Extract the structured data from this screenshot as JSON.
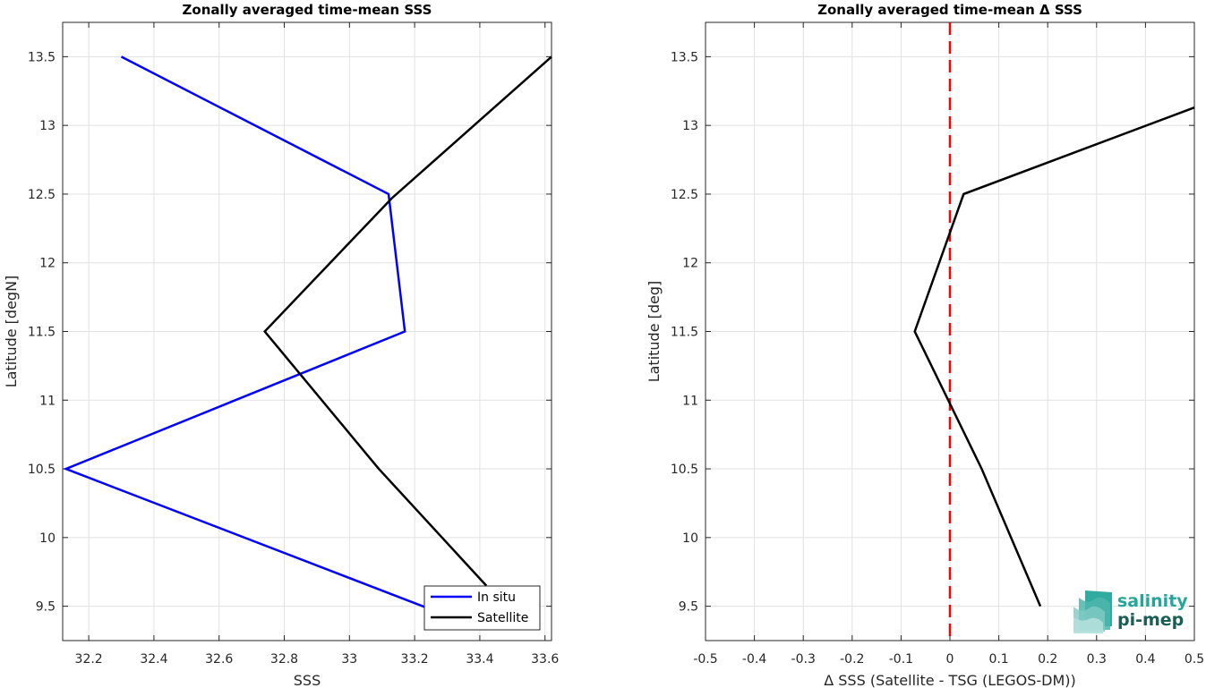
{
  "chart_data": [
    {
      "type": "line",
      "title": "Zonally averaged time-mean SSS",
      "xlabel": "SSS",
      "ylabel": "Latitude [degN]",
      "xlim": [
        32.12,
        33.62
      ],
      "ylim": [
        9.25,
        13.75
      ],
      "xticks": [
        32.2,
        32.4,
        32.6,
        32.8,
        33,
        33.2,
        33.4,
        33.6
      ],
      "yticks": [
        9.5,
        10,
        10.5,
        11,
        11.5,
        12,
        12.5,
        13,
        13.5
      ],
      "grid": true,
      "legend_position": "bottom-right",
      "series": [
        {
          "name": "In situ",
          "color": "#0000ff",
          "points": [
            [
              33.28,
              9.45
            ],
            [
              32.13,
              10.5
            ],
            [
              33.17,
              11.5
            ],
            [
              33.12,
              12.5
            ],
            [
              32.3,
              13.5
            ]
          ]
        },
        {
          "name": "Satellite",
          "color": "#000000",
          "points": [
            [
              33.42,
              9.65
            ],
            [
              33.09,
              10.5
            ],
            [
              32.74,
              11.5
            ],
            [
              33.13,
              12.47
            ],
            [
              33.62,
              13.5
            ]
          ]
        }
      ]
    },
    {
      "type": "line",
      "title": "Zonally averaged time-mean Δ SSS",
      "xlabel": "Δ SSS (Satellite - TSG (LEGOS-DM))",
      "ylabel": "Latitude [deg]",
      "xlim": [
        -0.5,
        0.5
      ],
      "ylim": [
        9.25,
        13.75
      ],
      "xticks": [
        -0.5,
        -0.4,
        -0.3,
        -0.2,
        -0.1,
        0,
        0.1,
        0.2,
        0.3,
        0.4,
        0.5
      ],
      "yticks": [
        9.5,
        10,
        10.5,
        11,
        11.5,
        12,
        12.5,
        13,
        13.5
      ],
      "grid": true,
      "reference_line": {
        "x": 0,
        "color": "#ff0000",
        "style": "dashed"
      },
      "series": [
        {
          "color": "#000000",
          "points": [
            [
              0.185,
              9.5
            ],
            [
              0.065,
              10.5
            ],
            [
              -0.072,
              11.5
            ],
            [
              0.028,
              12.5
            ],
            [
              0.5,
              13.13
            ]
          ]
        }
      ]
    }
  ],
  "logo": {
    "line1": "salinity",
    "line2": "pi-mep",
    "color1": "#26a69a",
    "color2": "#1b5e57"
  }
}
